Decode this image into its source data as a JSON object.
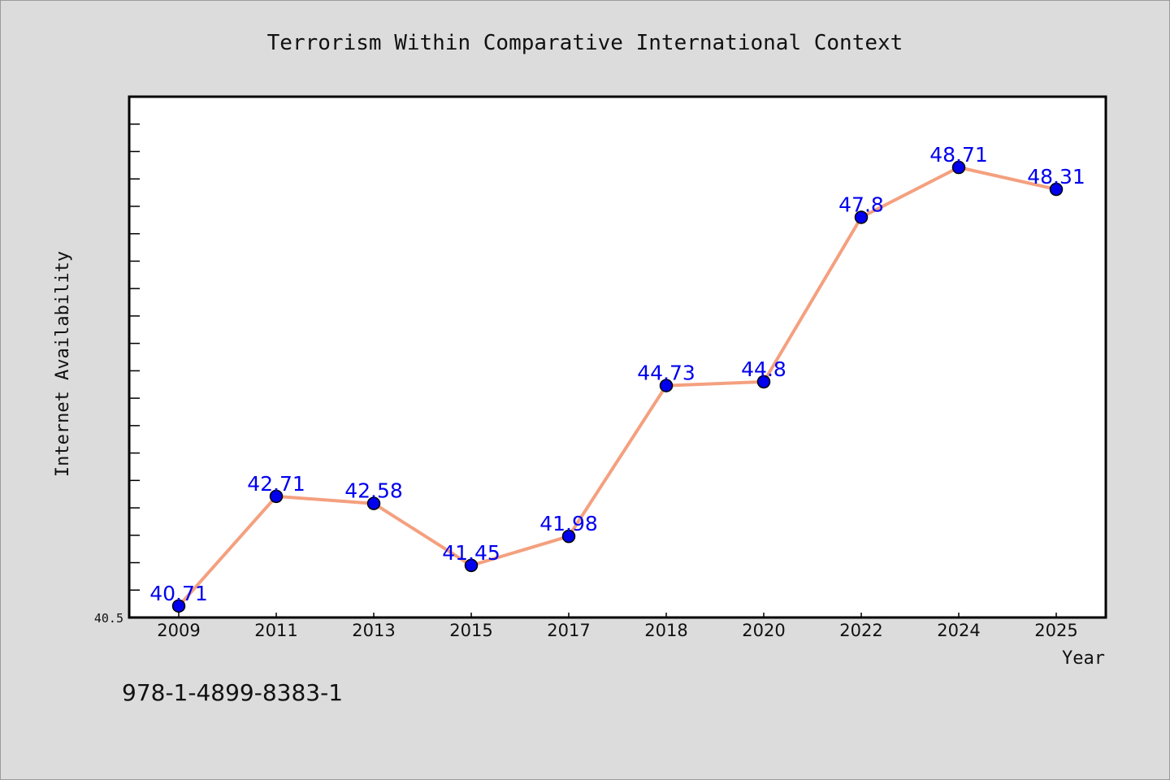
{
  "chart_data": {
    "type": "line",
    "title": "Terrorism Within Comparative International Context",
    "xlabel": "Year",
    "ylabel": "Internet Availability",
    "categories": [
      "2009",
      "2011",
      "2013",
      "2015",
      "2017",
      "2018",
      "2020",
      "2022",
      "2024",
      "2025"
    ],
    "series": [
      {
        "values": [
          40.71,
          42.71,
          42.58,
          41.45,
          41.98,
          44.73,
          44.8,
          47.8,
          48.71,
          48.31
        ],
        "labels": [
          "40.71",
          "42.71",
          "42.58",
          "41.45",
          "41.98",
          "44.73",
          "44.8",
          "47.8",
          "48.71",
          "48.31"
        ]
      }
    ],
    "ylim": [
      40.5,
      50.0
    ],
    "y_tick_labels": [
      "40.5"
    ],
    "grid": false,
    "colors": {
      "line": "#f4a07f",
      "marker": "#0000ee",
      "data_label": "#0000ee",
      "plot_background": "#ffffff",
      "figure_background": "#dcdcdc"
    }
  },
  "footer": {
    "isbn": "978-1-4899-8383-1"
  }
}
